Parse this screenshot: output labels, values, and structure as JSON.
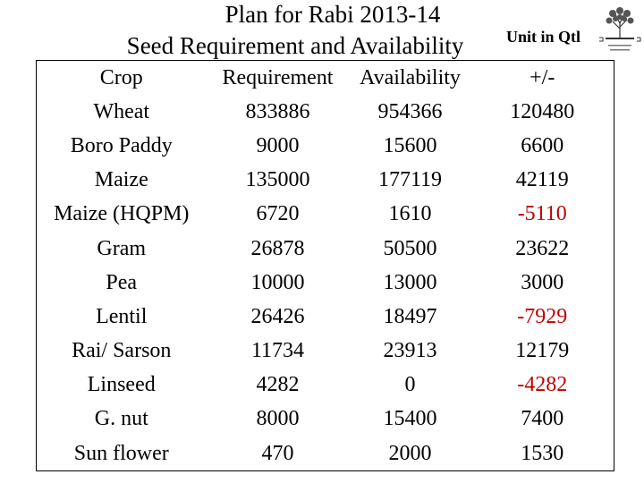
{
  "title_line1": "Plan for Rabi 2013-14",
  "title_line2": "Seed Requirement and Availability",
  "unit_label": "Unit in Qtl",
  "logo": {
    "icon": "tree-emblem-icon",
    "caption": "Organization emblem",
    "color": "#333333"
  },
  "table": {
    "headers": [
      "Crop",
      "Requirement",
      "Availability",
      "+/-"
    ],
    "rows": [
      {
        "crop": "Wheat",
        "requirement": "833886",
        "availability": "954366",
        "diff": "120480",
        "negative": false
      },
      {
        "crop": "Boro Paddy",
        "requirement": "9000",
        "availability": "15600",
        "diff": "6600",
        "negative": false
      },
      {
        "crop": "Maize",
        "requirement": "135000",
        "availability": "177119",
        "diff": "42119",
        "negative": false
      },
      {
        "crop": "Maize (HQPM)",
        "requirement": "6720",
        "availability": "1610",
        "diff": "-5110",
        "negative": true
      },
      {
        "crop": "Gram",
        "requirement": "26878",
        "availability": "50500",
        "diff": "23622",
        "negative": false
      },
      {
        "crop": "Pea",
        "requirement": "10000",
        "availability": "13000",
        "diff": "3000",
        "negative": false
      },
      {
        "crop": "Lentil",
        "requirement": "26426",
        "availability": "18497",
        "diff": "-7929",
        "negative": true
      },
      {
        "crop": "Rai/ Sarson",
        "requirement": "11734",
        "availability": "23913",
        "diff": "12179",
        "negative": false
      },
      {
        "crop": "Linseed",
        "requirement": "4282",
        "availability": "0",
        "diff": "-4282",
        "negative": true
      },
      {
        "crop": "G. nut",
        "requirement": "8000",
        "availability": "15400",
        "diff": "7400",
        "negative": false
      },
      {
        "crop": "Sun flower",
        "requirement": "470",
        "availability": "2000",
        "diff": "1530",
        "negative": false
      }
    ]
  },
  "colors": {
    "text": "#000000",
    "negative": "#c00000",
    "background": "#ffffff",
    "border": "#000000"
  }
}
